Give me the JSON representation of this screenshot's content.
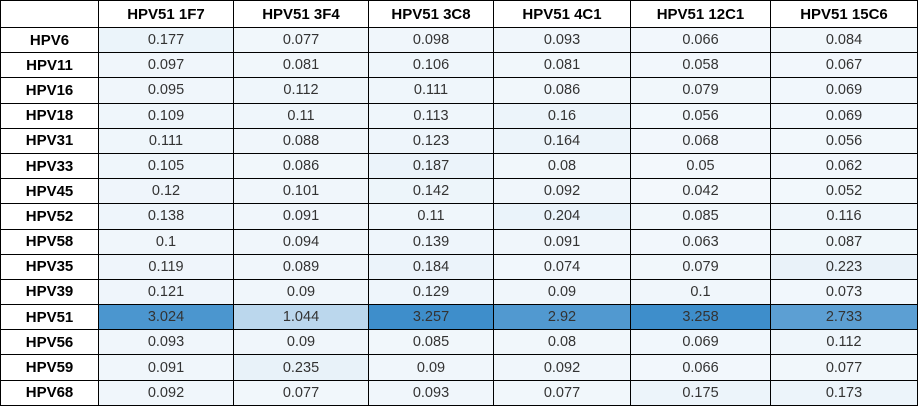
{
  "chart_data": {
    "type": "heatmap",
    "corner_label": "",
    "columns": [
      "HPV51 1F7",
      "HPV51 3F4",
      "HPV51 3C8",
      "HPV51 4C1",
      "HPV51 12C1",
      "HPV51 15C6"
    ],
    "rows": [
      "HPV6",
      "HPV11",
      "HPV16",
      "HPV18",
      "HPV31",
      "HPV33",
      "HPV45",
      "HPV52",
      "HPV58",
      "HPV35",
      "HPV39",
      "HPV51",
      "HPV56",
      "HPV59",
      "HPV68"
    ],
    "values": [
      [
        "0.177",
        "0.077",
        "0.098",
        "0.093",
        "0.066",
        "0.084"
      ],
      [
        "0.097",
        "0.081",
        "0.106",
        "0.081",
        "0.058",
        "0.067"
      ],
      [
        "0.095",
        "0.112",
        "0.111",
        "0.086",
        "0.079",
        "0.069"
      ],
      [
        "0.109",
        "0.11",
        "0.113",
        "0.16",
        "0.056",
        "0.069"
      ],
      [
        "0.111",
        "0.088",
        "0.123",
        "0.164",
        "0.068",
        "0.056"
      ],
      [
        "0.105",
        "0.086",
        "0.187",
        "0.08",
        "0.05",
        "0.062"
      ],
      [
        "0.12",
        "0.101",
        "0.142",
        "0.092",
        "0.042",
        "0.052"
      ],
      [
        "0.138",
        "0.091",
        "0.11",
        "0.204",
        "0.085",
        "0.116"
      ],
      [
        "0.1",
        "0.094",
        "0.139",
        "0.091",
        "0.063",
        "0.087"
      ],
      [
        "0.119",
        "0.089",
        "0.184",
        "0.074",
        "0.079",
        "0.223"
      ],
      [
        "0.121",
        "0.09",
        "0.129",
        "0.09",
        "0.1",
        "0.073"
      ],
      [
        "3.024",
        "1.044",
        "3.257",
        "2.92",
        "3.258",
        "2.733"
      ],
      [
        "0.093",
        "0.09",
        "0.085",
        "0.08",
        "0.069",
        "0.112"
      ],
      [
        "0.091",
        "0.235",
        "0.09",
        "0.092",
        "0.066",
        "0.077"
      ],
      [
        "0.092",
        "0.077",
        "0.093",
        "0.077",
        "0.175",
        "0.173"
      ]
    ],
    "colorscale": {
      "min_value": 0.042,
      "max_value": 3.258,
      "min_color": "#F3F8FC",
      "max_color": "#3E8ECB"
    }
  },
  "style_colors": {
    "border": "#000000",
    "header_text": "#000000",
    "value_text": "#333333"
  }
}
